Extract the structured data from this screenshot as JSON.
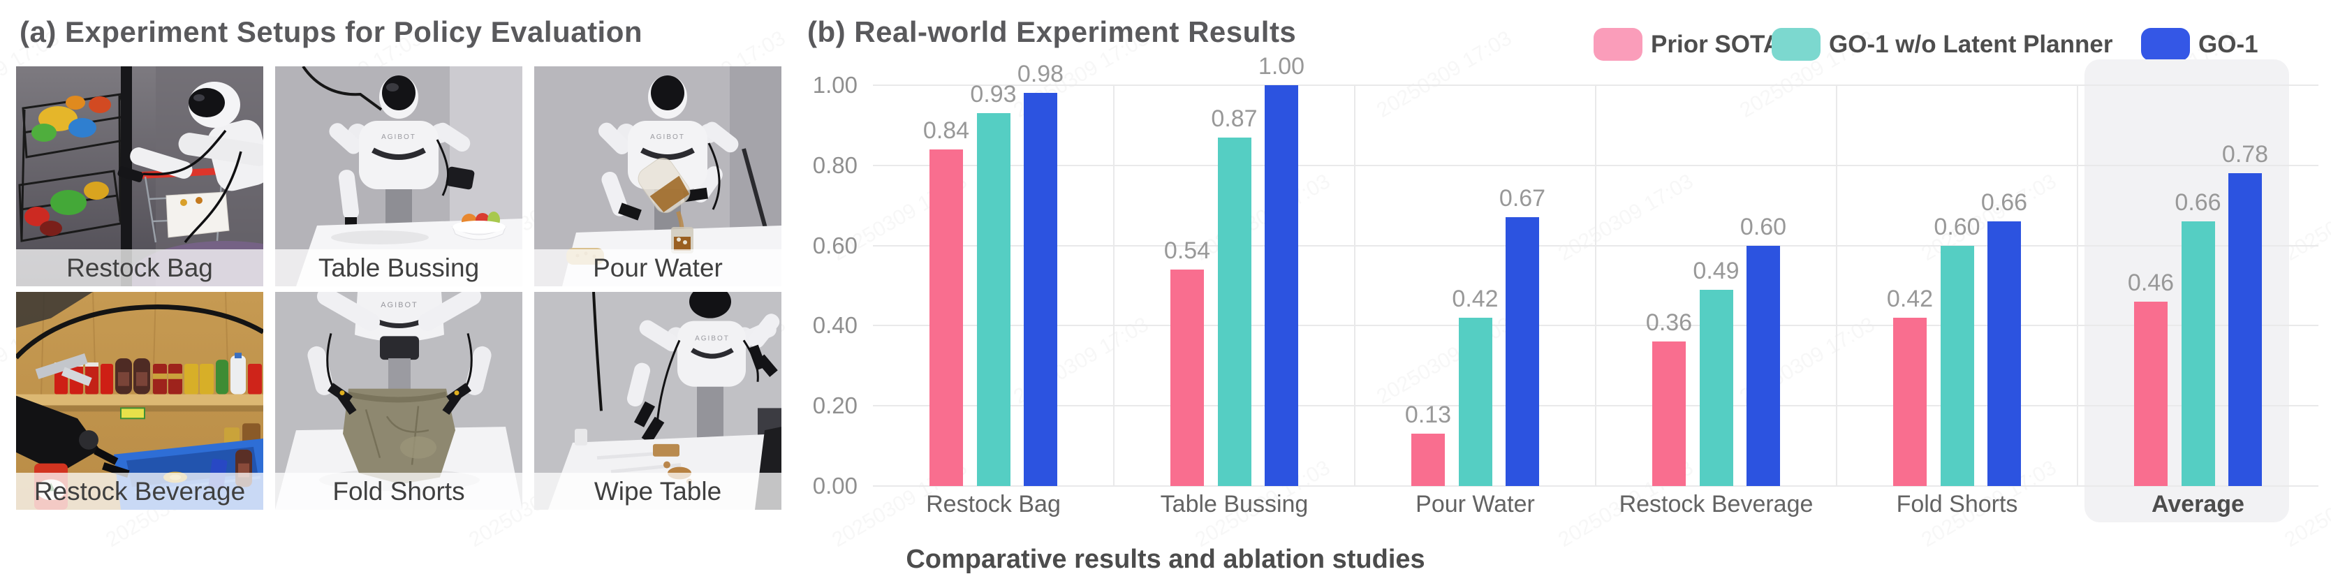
{
  "panel_a": {
    "title": "(a) Experiment Setups for Policy Evaluation",
    "photos": [
      {
        "label": "Restock Bag"
      },
      {
        "label": "Table Bussing"
      },
      {
        "label": "Pour Water"
      },
      {
        "label": "Restock Beverage"
      },
      {
        "label": "Fold Shorts"
      },
      {
        "label": "Wipe Table"
      }
    ]
  },
  "panel_b": {
    "title": "(b) Real-world Experiment Results",
    "caption": "Comparative results and ablation studies",
    "legend": [
      {
        "label": "Prior SOTA",
        "color": "#FA9DBA"
      },
      {
        "label": "GO-1 w/o Latent Planner",
        "color": "#7CD8CF"
      },
      {
        "label": "GO-1",
        "color": "#3457E6"
      }
    ]
  },
  "chart_data": {
    "type": "bar",
    "title": "(b) Real-world Experiment Results",
    "categories": [
      "Restock Bag",
      "Table Bussing",
      "Pour Water",
      "Restock Beverage",
      "Fold Shorts",
      "Average"
    ],
    "series": [
      {
        "name": "Prior SOTA",
        "color": "#F96E8F",
        "values": [
          0.84,
          0.54,
          0.13,
          0.36,
          0.42,
          0.46
        ]
      },
      {
        "name": "GO-1 w/o Latent Planner",
        "color": "#55CEC3",
        "values": [
          0.93,
          0.87,
          0.42,
          0.49,
          0.6,
          0.66
        ]
      },
      {
        "name": "GO-1",
        "color": "#2C53E0",
        "values": [
          0.98,
          1.0,
          0.67,
          0.6,
          0.66,
          0.78
        ]
      }
    ],
    "ylim": [
      0.0,
      1.0
    ],
    "yticks": [
      "0.00",
      "0.20",
      "0.40",
      "0.60",
      "0.80",
      "1.00"
    ],
    "grid": true,
    "value_labels": true,
    "legend_position": "top-right",
    "highlight_category": "Average",
    "grid_color": "#e9e9ea",
    "highlight_color": "#f2f2f4"
  },
  "watermark": "20250309 17:03"
}
